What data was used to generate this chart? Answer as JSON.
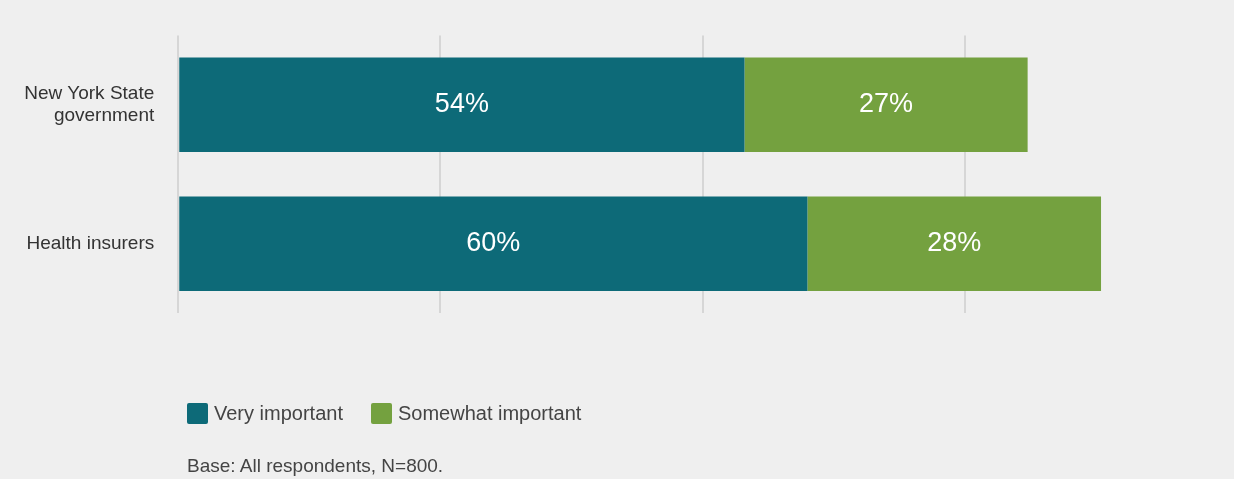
{
  "chart_data": {
    "type": "bar",
    "orientation": "horizontal",
    "stacked": true,
    "categories": [
      "New York State government",
      "Health insurers"
    ],
    "series": [
      {
        "name": "Very important",
        "color": "#0d6a78",
        "values": [
          54,
          60
        ],
        "value_labels": [
          "54%",
          "60%"
        ]
      },
      {
        "name": "Somewhat important",
        "color": "#74a13f",
        "values": [
          27,
          28
        ],
        "value_labels": [
          "27%",
          "28%"
        ]
      }
    ],
    "xticks": [
      {
        "value": 0,
        "label": null
      },
      {
        "value": 25,
        "label": null
      },
      {
        "value": 50,
        "label": null
      },
      {
        "value": 75,
        "label": null
      }
    ],
    "tick_labels": "y",
    "grid": "x",
    "legend": "bottom",
    "annotations": [
      "Base: All respondents, N=800."
    ]
  }
}
